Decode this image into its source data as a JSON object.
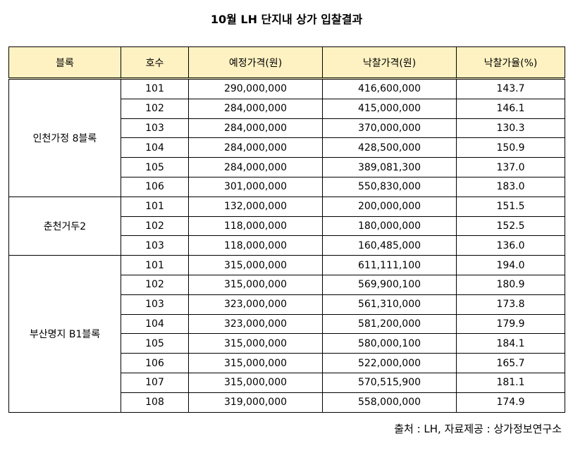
{
  "title": "10월 LH 단지내 상가 입찰결과",
  "table": {
    "header": [
      "블록",
      "호수",
      "예정가격(원)",
      "낙찰가격(원)",
      "낙찰가율(%)"
    ],
    "groups": [
      {
        "block": "인천가정 8블록",
        "rows": [
          [
            "101",
            "290,000,000",
            "416,600,000",
            "143.7"
          ],
          [
            "102",
            "284,000,000",
            "415,000,000",
            "146.1"
          ],
          [
            "103",
            "284,000,000",
            "370,000,000",
            "130.3"
          ],
          [
            "104",
            "284,000,000",
            "428,500,000",
            "150.9"
          ],
          [
            "105",
            "284,000,000",
            "389,081,300",
            "137.0"
          ],
          [
            "106",
            "301,000,000",
            "550,830,000",
            "183.0"
          ]
        ]
      },
      {
        "block": "춘천거두2",
        "rows": [
          [
            "101",
            "132,000,000",
            "200,000,000",
            "151.5"
          ],
          [
            "102",
            "118,000,000",
            "180,000,000",
            "152.5"
          ],
          [
            "103",
            "118,000,000",
            "160,485,000",
            "136.0"
          ]
        ]
      },
      {
        "block": "부산명지 B1블록",
        "rows": [
          [
            "101",
            "315,000,000",
            "611,111,100",
            "194.0"
          ],
          [
            "102",
            "315,000,000",
            "569,900,100",
            "180.9"
          ],
          [
            "103",
            "323,000,000",
            "561,310,000",
            "173.8"
          ],
          [
            "104",
            "323,000,000",
            "581,200,000",
            "179.9"
          ],
          [
            "105",
            "315,000,000",
            "580,000,100",
            "184.1"
          ],
          [
            "106",
            "315,000,000",
            "522,000,000",
            "165.7"
          ],
          [
            "107",
            "315,000,000",
            "570,515,900",
            "181.1"
          ],
          [
            "108",
            "319,000,000",
            "558,000,000",
            "174.9"
          ]
        ]
      }
    ]
  },
  "footer": "출처 : LH, 자료제공 : 상가정보연구소"
}
